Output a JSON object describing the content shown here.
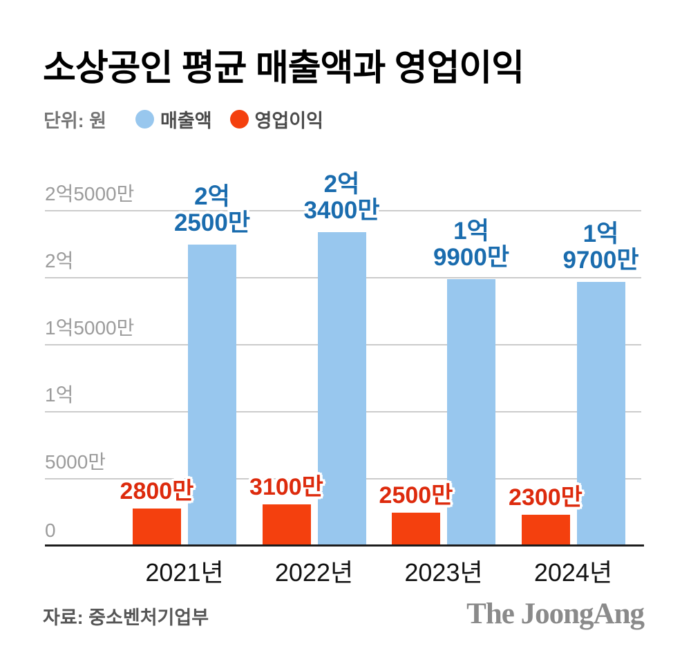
{
  "title": "소상공인 평균 매출액과 영업이익",
  "legend": {
    "unit_label": "단위: 원",
    "series": [
      {
        "name": "매출액",
        "color": "#98C7EE"
      },
      {
        "name": "영업이익",
        "color": "#F4400E"
      }
    ]
  },
  "chart_data": {
    "type": "bar",
    "title": "소상공인 평균 매출액과 영업이익",
    "unit": "원",
    "categories": [
      "2021년",
      "2022년",
      "2023년",
      "2024년"
    ],
    "series": [
      {
        "name": "매출액",
        "values": [
          225000000,
          234000000,
          199000000,
          197000000
        ],
        "value_labels": [
          [
            "2억",
            "2500만"
          ],
          [
            "2억",
            "3400만"
          ],
          [
            "1억",
            "9900만"
          ],
          [
            "1억",
            "9700만"
          ]
        ],
        "bar_color": "#98C7EE",
        "label_color": "#1A6CAE"
      },
      {
        "name": "영업이익",
        "values": [
          28000000,
          31000000,
          25000000,
          23000000
        ],
        "value_labels": [
          [
            "2800만"
          ],
          [
            "3100만"
          ],
          [
            "2500만"
          ],
          [
            "2300만"
          ]
        ],
        "bar_color": "#F4400E",
        "label_color": "#DD2A0C"
      }
    ],
    "ylim": [
      0,
      250000000
    ],
    "yticks": [
      {
        "value": 0,
        "label": "0"
      },
      {
        "value": 50000000,
        "label": "5000만"
      },
      {
        "value": 100000000,
        "label": "1억"
      },
      {
        "value": 150000000,
        "label": "1억5000만"
      },
      {
        "value": 200000000,
        "label": "2억"
      },
      {
        "value": 250000000,
        "label": "2억5000만"
      }
    ],
    "grid": true,
    "legend_position": "top"
  },
  "colors": {
    "grid": "#CBCBCB",
    "axis": "#1C1C1C",
    "tick_text": "#9B9B9B"
  },
  "footer": {
    "source": "자료: 중소벤처기업부",
    "brand": "The JoongAng"
  }
}
